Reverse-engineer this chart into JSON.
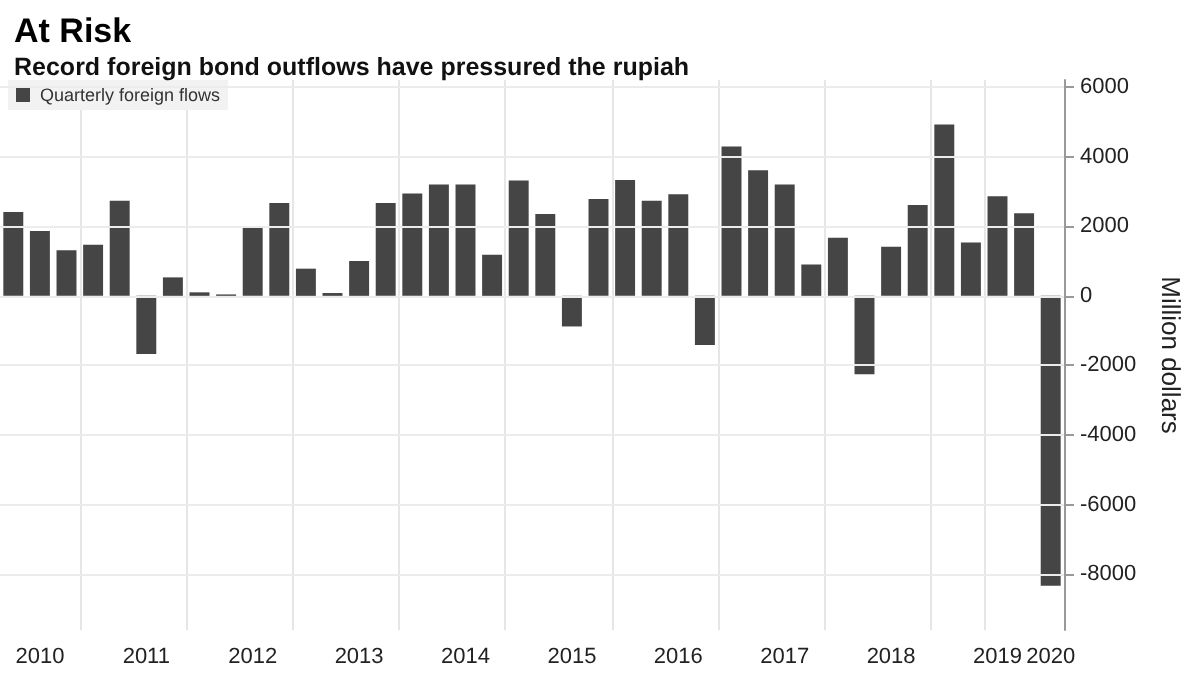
{
  "chart_data": {
    "type": "bar",
    "title": "At Risk",
    "subtitle": "Record foreign bond outflows have pressured the rupiah",
    "ylabel": "Million dollars",
    "categories": [
      null,
      "2010",
      null,
      null,
      null,
      "2011",
      null,
      null,
      null,
      "2012",
      null,
      null,
      null,
      "2013",
      null,
      null,
      null,
      "2014",
      null,
      null,
      null,
      "2015",
      null,
      null,
      null,
      "2016",
      null,
      null,
      null,
      "2017",
      null,
      null,
      null,
      "2018",
      null,
      null,
      null,
      "2019",
      null,
      "2020"
    ],
    "series": [
      {
        "name": "Quarterly foreign flows",
        "color": "#454545",
        "values": [
          2410,
          1860,
          1310,
          1470,
          2730,
          -1670,
          530,
          100,
          40,
          2000,
          2670,
          780,
          80,
          1000,
          2670,
          2940,
          3200,
          3200,
          1180,
          3310,
          2350,
          -880,
          2780,
          3330,
          2730,
          2920,
          -1410,
          4290,
          3610,
          3200,
          900,
          1670,
          -2250,
          1410,
          2610,
          4920,
          1530,
          2860,
          2370,
          -8330
        ]
      }
    ],
    "ylim": [
      -9600,
      6200
    ],
    "yticks": [
      -8000,
      -6000,
      -4000,
      -2000,
      0,
      2000,
      4000,
      6000
    ],
    "grid": true,
    "legend": "top left"
  }
}
